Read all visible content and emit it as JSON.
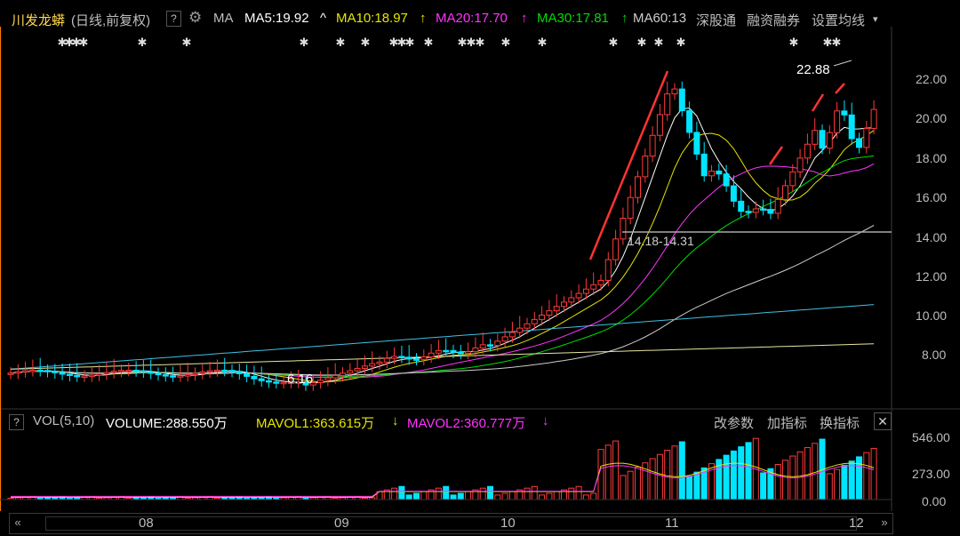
{
  "header": {
    "stock_name": "川发龙蟒",
    "period": "(日线,前复权)",
    "help_label": "?",
    "ma_label": "MA",
    "ma5": "MA5:19.92",
    "ma5_arrow": "^",
    "ma10": "MA10:18.97",
    "ma10_arrow": "↑",
    "ma20": "MA20:17.70",
    "ma20_arrow": "↑",
    "ma30": "MA30:17.81",
    "ma30_arrow": "↑",
    "ma60": "MA60:13",
    "link1": "深股通",
    "link2": "融资融券",
    "settings": "设置均线",
    "settings_arrow": "▾",
    "icon": "gear-icon"
  },
  "colors": {
    "up": "#ff3a3a",
    "down": "#00e5ff",
    "ma5": "#ffffff",
    "ma10": "#e6e600",
    "ma20": "#ff33ff",
    "ma30": "#00dd00",
    "ma60": "#cccccc",
    "ma120": "#3fc1e6",
    "ma250": "#e6e6a0",
    "accent": "#ff9900"
  },
  "price_axis": [
    "22.00",
    "20.00",
    "18.00",
    "16.00",
    "14.00",
    "12.00",
    "10.00",
    "8.00"
  ],
  "annotations": {
    "high": "22.88",
    "low": "6.16",
    "support": "14.18-14.31"
  },
  "volume": {
    "help_label": "?",
    "title": "VOL(5,10)",
    "volume": "VOLUME:288.550万",
    "mavol1": "MAVOL1:363.615万",
    "mavol1_arrow": "↓",
    "mavol2": "MAVOL2:360.777万",
    "mavol2_arrow": "↓",
    "btn_params": "改参数",
    "btn_add": "加指标",
    "btn_switch": "换指标",
    "close": "✕",
    "axis": [
      "546.00",
      "273.00",
      "0.00"
    ]
  },
  "x_axis": [
    "08",
    "09",
    "10",
    "11",
    "12"
  ],
  "scrollbar": {
    "left": "«",
    "right": "»"
  }
}
